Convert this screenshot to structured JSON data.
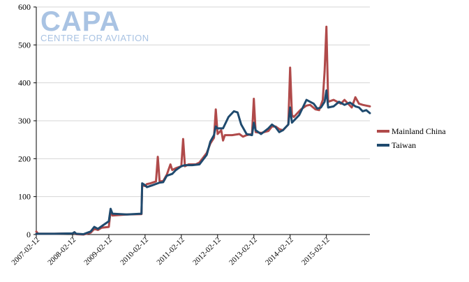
{
  "logo": {
    "name": "CAPA",
    "tagline": "CENTRE FOR AVIATION"
  },
  "chart_data": {
    "type": "line",
    "title": "",
    "xlabel": "",
    "ylabel": "",
    "ylim": [
      0,
      600
    ],
    "yticks": [
      0,
      100,
      200,
      300,
      400,
      500,
      600
    ],
    "x_tick_labels": [
      "2007-02-12",
      "2008-02-12",
      "2009-02-12",
      "2010-02-12",
      "2011-02-12",
      "2012-02-12",
      "2013-02-12",
      "2014-02-12",
      "2015-02-12"
    ],
    "x_range": [
      2007.0,
      2016.2
    ],
    "grid": "horizontal",
    "legend_placement": "right",
    "series": [
      {
        "name": "Mainland China",
        "color": "#b04a4a",
        "points": [
          [
            2007.0,
            8
          ],
          [
            2007.05,
            2
          ],
          [
            2007.5,
            2
          ],
          [
            2008.0,
            3
          ],
          [
            2008.05,
            6
          ],
          [
            2008.1,
            1
          ],
          [
            2008.3,
            0
          ],
          [
            2008.5,
            5
          ],
          [
            2008.6,
            15
          ],
          [
            2008.7,
            12
          ],
          [
            2008.8,
            18
          ],
          [
            2009.0,
            20
          ],
          [
            2009.05,
            62
          ],
          [
            2009.1,
            50
          ],
          [
            2009.5,
            53
          ],
          [
            2009.9,
            54
          ],
          [
            2009.92,
            130
          ],
          [
            2010.0,
            128
          ],
          [
            2010.05,
            133
          ],
          [
            2010.15,
            135
          ],
          [
            2010.3,
            140
          ],
          [
            2010.35,
            205
          ],
          [
            2010.4,
            140
          ],
          [
            2010.5,
            141
          ],
          [
            2010.6,
            158
          ],
          [
            2010.7,
            185
          ],
          [
            2010.75,
            170
          ],
          [
            2010.85,
            175
          ],
          [
            2011.0,
            180
          ],
          [
            2011.05,
            252
          ],
          [
            2011.1,
            180
          ],
          [
            2011.2,
            185
          ],
          [
            2011.4,
            185
          ],
          [
            2011.5,
            190
          ],
          [
            2011.7,
            215
          ],
          [
            2011.8,
            240
          ],
          [
            2011.9,
            255
          ],
          [
            2011.95,
            330
          ],
          [
            2012.0,
            265
          ],
          [
            2012.1,
            275
          ],
          [
            2012.15,
            248
          ],
          [
            2012.2,
            262
          ],
          [
            2012.4,
            262
          ],
          [
            2012.6,
            265
          ],
          [
            2012.7,
            258
          ],
          [
            2012.8,
            262
          ],
          [
            2012.95,
            265
          ],
          [
            2013.0,
            358
          ],
          [
            2013.05,
            270
          ],
          [
            2013.2,
            268
          ],
          [
            2013.4,
            273
          ],
          [
            2013.5,
            285
          ],
          [
            2013.6,
            285
          ],
          [
            2013.7,
            278
          ],
          [
            2013.8,
            275
          ],
          [
            2013.95,
            290
          ],
          [
            2014.0,
            440
          ],
          [
            2014.05,
            315
          ],
          [
            2014.1,
            310
          ],
          [
            2014.3,
            330
          ],
          [
            2014.45,
            340
          ],
          [
            2014.55,
            342
          ],
          [
            2014.7,
            330
          ],
          [
            2014.8,
            328
          ],
          [
            2014.9,
            355
          ],
          [
            2014.95,
            430
          ],
          [
            2015.0,
            548
          ],
          [
            2015.05,
            350
          ],
          [
            2015.2,
            355
          ],
          [
            2015.4,
            345
          ],
          [
            2015.5,
            355
          ],
          [
            2015.7,
            335
          ],
          [
            2015.8,
            362
          ],
          [
            2015.9,
            345
          ],
          [
            2016.0,
            342
          ],
          [
            2016.1,
            340
          ],
          [
            2016.2,
            338
          ]
        ]
      },
      {
        "name": "Taiwan",
        "color": "#1f4a6e",
        "points": [
          [
            2007.0,
            2
          ],
          [
            2007.5,
            2
          ],
          [
            2008.0,
            3
          ],
          [
            2008.05,
            6
          ],
          [
            2008.1,
            2
          ],
          [
            2008.3,
            1
          ],
          [
            2008.5,
            8
          ],
          [
            2008.6,
            20
          ],
          [
            2008.7,
            15
          ],
          [
            2008.85,
            25
          ],
          [
            2009.0,
            35
          ],
          [
            2009.05,
            68
          ],
          [
            2009.1,
            55
          ],
          [
            2009.5,
            53
          ],
          [
            2009.9,
            55
          ],
          [
            2009.92,
            135
          ],
          [
            2010.0,
            130
          ],
          [
            2010.05,
            125
          ],
          [
            2010.2,
            130
          ],
          [
            2010.4,
            137
          ],
          [
            2010.5,
            138
          ],
          [
            2010.6,
            155
          ],
          [
            2010.75,
            160
          ],
          [
            2010.85,
            170
          ],
          [
            2011.0,
            180
          ],
          [
            2011.1,
            183
          ],
          [
            2011.3,
            183
          ],
          [
            2011.5,
            185
          ],
          [
            2011.7,
            210
          ],
          [
            2011.8,
            245
          ],
          [
            2011.9,
            262
          ],
          [
            2011.95,
            285
          ],
          [
            2012.0,
            280
          ],
          [
            2012.15,
            280
          ],
          [
            2012.3,
            310
          ],
          [
            2012.45,
            325
          ],
          [
            2012.55,
            322
          ],
          [
            2012.65,
            290
          ],
          [
            2012.8,
            265
          ],
          [
            2012.95,
            262
          ],
          [
            2013.0,
            295
          ],
          [
            2013.05,
            275
          ],
          [
            2013.2,
            265
          ],
          [
            2013.4,
            280
          ],
          [
            2013.5,
            290
          ],
          [
            2013.6,
            283
          ],
          [
            2013.7,
            270
          ],
          [
            2013.8,
            275
          ],
          [
            2013.95,
            290
          ],
          [
            2014.0,
            335
          ],
          [
            2014.05,
            295
          ],
          [
            2014.1,
            300
          ],
          [
            2014.25,
            315
          ],
          [
            2014.45,
            355
          ],
          [
            2014.55,
            350
          ],
          [
            2014.65,
            345
          ],
          [
            2014.75,
            332
          ],
          [
            2014.85,
            335
          ],
          [
            2014.95,
            350
          ],
          [
            2015.0,
            380
          ],
          [
            2015.05,
            335
          ],
          [
            2015.2,
            338
          ],
          [
            2015.35,
            350
          ],
          [
            2015.5,
            342
          ],
          [
            2015.65,
            348
          ],
          [
            2015.8,
            338
          ],
          [
            2015.9,
            335
          ],
          [
            2016.0,
            325
          ],
          [
            2016.1,
            328
          ],
          [
            2016.2,
            320
          ]
        ]
      }
    ]
  }
}
